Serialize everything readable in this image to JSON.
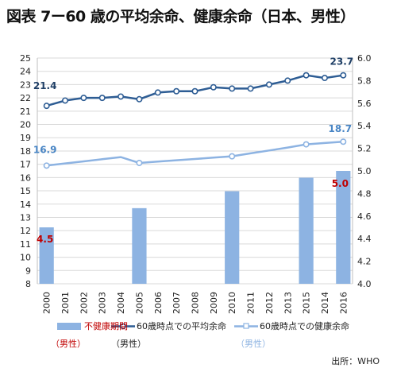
{
  "title": "図表 7ー60 歳の平均余命、健康余命（日本、男性）",
  "source": "出所：WHO",
  "chart_data": {
    "type": "bar+line",
    "categories": [
      "2000",
      "2001",
      "2002",
      "2003",
      "2004",
      "2005",
      "2006",
      "2007",
      "2008",
      "2009",
      "2010",
      "2011",
      "2012",
      "2013",
      "2015",
      "2014",
      "2016"
    ],
    "ylim_left": [
      8,
      25
    ],
    "yticks_left": [
      8,
      9,
      10,
      11,
      12,
      13,
      14,
      15,
      16,
      17,
      18,
      19,
      20,
      21,
      22,
      23,
      24,
      25
    ],
    "ylim_right": [
      4.0,
      6.0
    ],
    "yticks_right": [
      "4.0",
      "4.2",
      "4.4",
      "4.6",
      "4.8",
      "5.0",
      "5.2",
      "5.4",
      "5.6",
      "5.8",
      "6.0"
    ],
    "grid": true,
    "legend_position": "bottom",
    "series": [
      {
        "name": "60歳時点での平均余命",
        "type": "line",
        "axis": "left",
        "color": "#2e5d94",
        "values": [
          21.4,
          21.8,
          22.0,
          22.0,
          22.1,
          21.9,
          22.4,
          22.5,
          22.5,
          22.8,
          22.7,
          22.7,
          23.0,
          23.3,
          23.7,
          23.5,
          23.7
        ],
        "labels": {
          "0": "21.4",
          "16": "23.7"
        }
      },
      {
        "name": "60歳時点での健康余命",
        "type": "line",
        "axis": "left",
        "color": "#8db3e2",
        "marker_indices": [
          0,
          5,
          10,
          14,
          16
        ],
        "values": [
          16.9,
          17.06,
          17.22,
          17.38,
          17.54,
          17.1,
          17.2,
          17.3,
          17.4,
          17.5,
          17.6,
          17.82,
          18.04,
          18.26,
          18.5,
          18.6,
          18.7
        ],
        "labels": {
          "0": "16.9",
          "16": "18.7"
        }
      },
      {
        "name": "不健康期間",
        "name_suffix": "（男性）",
        "type": "bar",
        "axis": "right",
        "color": "#8db3e2",
        "values": [
          4.5,
          null,
          null,
          null,
          null,
          4.67,
          null,
          null,
          null,
          null,
          4.82,
          null,
          null,
          null,
          4.94,
          null,
          5.0
        ],
        "labels": {
          "0": "4.5",
          "16": "5.0"
        }
      }
    ],
    "legend": [
      {
        "label": "不健康期間",
        "sub": "（男性）",
        "marker": "bar"
      },
      {
        "label": "60歳時点での平均余命",
        "sub": "（男性）",
        "marker": "line-dark"
      },
      {
        "label": "60歳時点での健康余命",
        "sub": "（男性）",
        "marker": "line-light"
      }
    ],
    "colors": {
      "dark_line": "#2e5d94",
      "light_line": "#8db3e2",
      "bar": "#8db3e2",
      "label_dark": "#1f3f66",
      "label_light": "#4a86c5",
      "label_red": "#c00000",
      "legend_red": "#c00000",
      "grid": "#d9d9d9"
    }
  }
}
